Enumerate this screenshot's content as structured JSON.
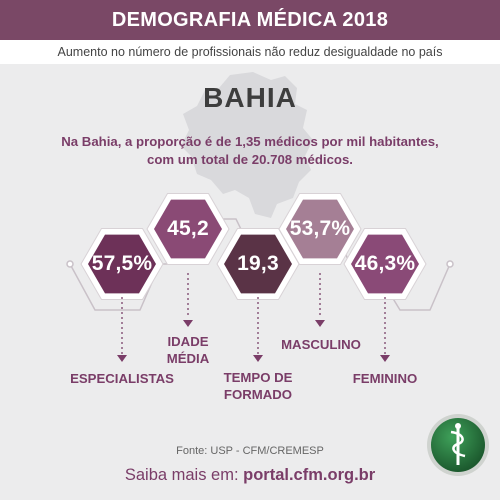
{
  "header": {
    "title": "DEMOGRAFIA MÉDICA 2018",
    "subtitle": "Aumento no número de profissionais não reduz desigualdade no país"
  },
  "state": {
    "name": "BAHIA"
  },
  "intro": {
    "line1": "Na Bahia, a proporção é de 1,35 médicos por mil habitantes,",
    "line2": "com um total de 20.708 médicos."
  },
  "stats": [
    {
      "value": "57,5%",
      "label_lines": [
        "ESPECIALISTAS"
      ],
      "color": "#6d3158",
      "icon": "users-icon"
    },
    {
      "value": "45,2",
      "label_lines": [
        "IDADE",
        "MÉDIA"
      ],
      "color": "#8a4a75",
      "icon": "calendar-icon"
    },
    {
      "value": "19,3",
      "label_lines": [
        "TEMPO DE",
        "FORMADO"
      ],
      "color": "#5a3346",
      "icon": "diploma-icon"
    },
    {
      "value": "53,7%",
      "label_lines": [
        "MASCULINO"
      ],
      "color": "#a57f95",
      "icon": "male-icon"
    },
    {
      "value": "46,3%",
      "label_lines": [
        "FEMININO"
      ],
      "color": "#8a4a77",
      "icon": "female-icon"
    }
  ],
  "footer": {
    "source": "Fonte: USP - CFM/CREMESP",
    "more_prefix": "Saiba mais em: ",
    "more_link": "portal.cfm.org.br"
  },
  "colors": {
    "brand": "#7a4866",
    "accent": "#7a3d68",
    "background": "#ececed"
  }
}
